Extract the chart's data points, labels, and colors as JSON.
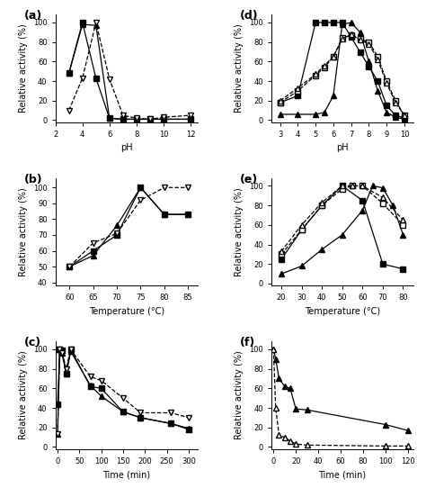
{
  "panel_a": {
    "label": "(a)",
    "xlabel": "pH",
    "ylabel": "Relative activity (%)",
    "xlim": [
      2,
      12.5
    ],
    "ylim": [
      -2,
      108
    ],
    "yticks": [
      0,
      20,
      40,
      60,
      80,
      100
    ],
    "xticks": [
      2,
      4,
      6,
      8,
      10,
      12
    ],
    "series": [
      {
        "x": [
          3,
          4,
          5,
          6,
          7,
          8,
          9,
          10,
          12
        ],
        "y": [
          48,
          100,
          43,
          2,
          1,
          1,
          1,
          1,
          1
        ],
        "marker": "s",
        "filled": true,
        "linestyle": "-"
      },
      {
        "x": [
          3,
          4,
          5,
          6,
          7,
          8,
          9,
          10,
          12
        ],
        "y": [
          48,
          98,
          97,
          2,
          1,
          1,
          1,
          1,
          1
        ],
        "marker": "^",
        "filled": true,
        "linestyle": "-"
      },
      {
        "x": [
          3,
          4,
          5,
          6,
          7,
          8,
          9,
          10,
          12
        ],
        "y": [
          10,
          43,
          100,
          42,
          5,
          2,
          1,
          3,
          5
        ],
        "marker": "v",
        "filled": false,
        "linestyle": "--"
      }
    ]
  },
  "panel_b": {
    "label": "(b)",
    "xlabel": "Temperature (°C)",
    "ylabel": "Relative activity (%)",
    "xlim": [
      57,
      87
    ],
    "ylim": [
      38,
      106
    ],
    "yticks": [
      40,
      50,
      60,
      70,
      80,
      90,
      100
    ],
    "xticks": [
      60,
      65,
      70,
      75,
      80,
      85
    ],
    "series": [
      {
        "x": [
          60,
          65,
          70,
          75,
          80,
          85
        ],
        "y": [
          50,
          60,
          70,
          100,
          83,
          83
        ],
        "marker": "s",
        "filled": true,
        "linestyle": "-"
      },
      {
        "x": [
          60,
          65,
          70,
          75,
          80,
          85
        ],
        "y": [
          50,
          57,
          76,
          100,
          83,
          83
        ],
        "marker": "^",
        "filled": true,
        "linestyle": "-"
      },
      {
        "x": [
          60,
          65,
          70,
          75,
          80,
          85
        ],
        "y": [
          50,
          65,
          71,
          92,
          100,
          100
        ],
        "marker": "v",
        "filled": false,
        "linestyle": "--"
      }
    ]
  },
  "panel_c": {
    "label": "(c)",
    "xlabel": "Time (min)",
    "ylabel": "Relative activity (%)",
    "xlim": [
      -5,
      320
    ],
    "ylim": [
      -2,
      108
    ],
    "yticks": [
      0,
      20,
      40,
      60,
      80,
      100
    ],
    "xticks": [
      0,
      50,
      100,
      150,
      200,
      250,
      300
    ],
    "series": [
      {
        "x": [
          0,
          5,
          10,
          20,
          30,
          75,
          100,
          150,
          190,
          260,
          300
        ],
        "y": [
          44,
          100,
          99,
          75,
          100,
          62,
          60,
          36,
          30,
          24,
          18
        ],
        "marker": "s",
        "filled": true,
        "linestyle": "-"
      },
      {
        "x": [
          0,
          5,
          10,
          20,
          30,
          75,
          100,
          150,
          190,
          260,
          300
        ],
        "y": [
          13,
          100,
          96,
          75,
          98,
          63,
          52,
          36,
          30,
          24,
          19
        ],
        "marker": "^",
        "filled": true,
        "linestyle": "-"
      },
      {
        "x": [
          0,
          5,
          10,
          20,
          30,
          75,
          100,
          150,
          190,
          260,
          300
        ],
        "y": [
          13,
          100,
          96,
          80,
          100,
          72,
          68,
          50,
          35,
          35,
          30
        ],
        "marker": "v",
        "filled": false,
        "linestyle": "--"
      }
    ]
  },
  "panel_d": {
    "label": "(d)",
    "xlabel": "pH",
    "ylabel": "Relative activity (%)",
    "xlim": [
      2.5,
      10.5
    ],
    "ylim": [
      -2,
      108
    ],
    "yticks": [
      0,
      20,
      40,
      60,
      80,
      100
    ],
    "xticks": [
      3,
      4,
      5,
      6,
      7,
      8,
      9,
      10
    ],
    "series": [
      {
        "x": [
          3,
          4,
          5,
          5.5,
          6,
          6.5,
          7,
          7.5,
          8,
          8.5,
          9,
          9.5,
          10
        ],
        "y": [
          18,
          25,
          100,
          100,
          100,
          100,
          85,
          70,
          55,
          40,
          15,
          5,
          2
        ],
        "marker": "s",
        "filled": true,
        "linestyle": "-"
      },
      {
        "x": [
          3,
          4,
          5,
          5.5,
          6,
          6.5,
          7,
          7.5,
          8,
          8.5,
          9,
          9.5,
          10
        ],
        "y": [
          6,
          6,
          6,
          8,
          25,
          98,
          100,
          90,
          60,
          30,
          8,
          3,
          1
        ],
        "marker": "^",
        "filled": true,
        "linestyle": "-"
      },
      {
        "x": [
          3,
          4,
          5,
          5.5,
          6,
          6.5,
          7,
          7.5,
          8,
          8.5,
          9,
          9.5,
          10
        ],
        "y": [
          18,
          30,
          46,
          54,
          65,
          84,
          87,
          83,
          80,
          65,
          40,
          20,
          5
        ],
        "marker": "s",
        "filled": false,
        "linestyle": "--"
      },
      {
        "x": [
          3,
          4,
          5,
          5.5,
          6,
          6.5,
          7,
          7.5,
          8,
          8.5,
          9,
          9.5,
          10
        ],
        "y": [
          20,
          33,
          47,
          56,
          65,
          83,
          88,
          82,
          78,
          62,
          38,
          18,
          5
        ],
        "marker": "^",
        "filled": false,
        "linestyle": "--"
      }
    ]
  },
  "panel_e": {
    "label": "(e)",
    "xlabel": "Temperature (°C)",
    "ylabel": "Relative activity (%)",
    "xlim": [
      15,
      85
    ],
    "ylim": [
      -2,
      108
    ],
    "yticks": [
      0,
      20,
      40,
      60,
      80,
      100
    ],
    "xticks": [
      20,
      30,
      40,
      50,
      60,
      70,
      80
    ],
    "series": [
      {
        "x": [
          20,
          30,
          40,
          50,
          60,
          70,
          80
        ],
        "y": [
          25,
          55,
          80,
          100,
          85,
          20,
          15
        ],
        "marker": "s",
        "filled": true,
        "linestyle": "-"
      },
      {
        "x": [
          20,
          30,
          40,
          50,
          60,
          65,
          70,
          75,
          80
        ],
        "y": [
          10,
          18,
          35,
          50,
          75,
          100,
          98,
          80,
          50
        ],
        "marker": "^",
        "filled": true,
        "linestyle": "-"
      },
      {
        "x": [
          20,
          30,
          40,
          50,
          55,
          60,
          70,
          80
        ],
        "y": [
          30,
          55,
          80,
          97,
          100,
          100,
          82,
          60
        ],
        "marker": "s",
        "filled": false,
        "linestyle": "--"
      },
      {
        "x": [
          20,
          30,
          40,
          50,
          55,
          60,
          70,
          80
        ],
        "y": [
          33,
          60,
          83,
          100,
          100,
          100,
          88,
          65
        ],
        "marker": "^",
        "filled": false,
        "linestyle": "--"
      }
    ]
  },
  "panel_f": {
    "label": "(f)",
    "xlabel": "Time (min)",
    "ylabel": "Relative activity (%)",
    "xlim": [
      -2,
      125
    ],
    "ylim": [
      -2,
      108
    ],
    "yticks": [
      0,
      20,
      40,
      60,
      80,
      100
    ],
    "xticks": [
      0,
      20,
      40,
      60,
      80,
      100,
      120
    ],
    "series": [
      {
        "x": [
          0,
          2,
          5,
          10,
          15,
          20,
          30,
          100,
          120
        ],
        "y": [
          100,
          90,
          70,
          62,
          60,
          39,
          38,
          23,
          17
        ],
        "marker": "^",
        "filled": true,
        "linestyle": "-"
      },
      {
        "x": [
          0,
          2,
          5,
          10,
          15,
          20,
          30,
          100,
          120
        ],
        "y": [
          100,
          40,
          12,
          10,
          6,
          3,
          2,
          1,
          1
        ],
        "marker": "^",
        "filled": false,
        "linestyle": "--"
      }
    ]
  }
}
